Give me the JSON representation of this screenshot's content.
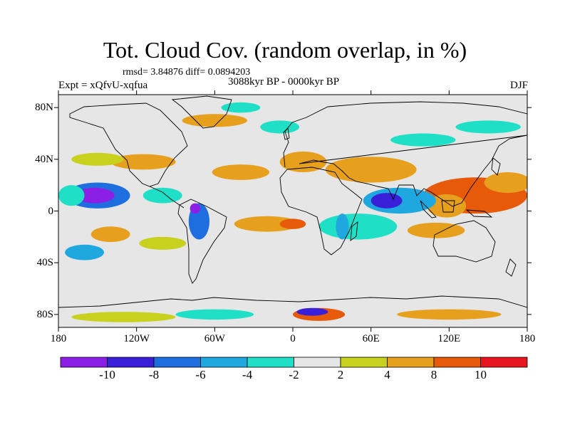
{
  "header": {
    "title": "Tot. Cloud Cov. (random overlap, in %)",
    "stats": "rmsd= 3.84876 diff= 0.0894203",
    "experiment": "Expt = xQfvU-xqfua",
    "period": "3088kyr BP - 0000kyr BP",
    "season": "DJF"
  },
  "axes": {
    "x_ticks": [
      {
        "value": -180,
        "label": "180"
      },
      {
        "value": -120,
        "label": "120W"
      },
      {
        "value": -60,
        "label": "60W"
      },
      {
        "value": 0,
        "label": "0"
      },
      {
        "value": 60,
        "label": "60E"
      },
      {
        "value": 120,
        "label": "120E"
      },
      {
        "value": 180,
        "label": "180"
      }
    ],
    "y_ticks": [
      {
        "value": 80,
        "label": "80N"
      },
      {
        "value": 40,
        "label": "40N"
      },
      {
        "value": 0,
        "label": "0"
      },
      {
        "value": -40,
        "label": "40S"
      },
      {
        "value": -80,
        "label": "80S"
      }
    ],
    "lon_range": [
      -180,
      180
    ],
    "lat_range": [
      -90,
      90
    ]
  },
  "colorbar": {
    "bins": [
      {
        "color": "#8b1fe6"
      },
      {
        "color": "#3a1fd8"
      },
      {
        "color": "#1f6ee0"
      },
      {
        "color": "#1fa8e0"
      },
      {
        "color": "#1fe0c6"
      },
      {
        "color": "#e6e6e6"
      },
      {
        "color": "#c8d21e"
      },
      {
        "color": "#e6a01e"
      },
      {
        "color": "#e65a0a"
      },
      {
        "color": "#e6141e"
      }
    ],
    "labels": [
      "-10",
      "-8",
      "-6",
      "-4",
      "-2",
      "2",
      "4",
      "8",
      "10"
    ]
  },
  "chart_data": {
    "type": "heatmap",
    "title": "Tot. Cloud Cov. (random overlap, in %)",
    "xlabel": "",
    "ylabel": "",
    "xlim": [
      -180,
      180
    ],
    "ylim": [
      -90,
      90
    ],
    "levels": [
      -10,
      -8,
      -6,
      -4,
      -2,
      2,
      4,
      8,
      10
    ],
    "anomaly_regions": [
      {
        "lon": 150,
        "lat": 12,
        "rlon": 28,
        "rlat": 9,
        "value": 11
      },
      {
        "lon": 140,
        "lat": 12,
        "rlon": 40,
        "rlat": 14,
        "value": 9
      },
      {
        "lon": 118,
        "lat": 4,
        "rlon": 15,
        "rlat": 9,
        "value": 6
      },
      {
        "lon": 165,
        "lat": 22,
        "rlon": 18,
        "rlat": 8,
        "value": 5
      },
      {
        "lon": 110,
        "lat": -15,
        "rlon": 22,
        "rlat": 6,
        "value": 5
      },
      {
        "lon": 82,
        "lat": 8,
        "rlon": 28,
        "rlat": 10,
        "value": -5
      },
      {
        "lon": 72,
        "lat": 8,
        "rlon": 12,
        "rlat": 6,
        "value": -9
      },
      {
        "lon": 50,
        "lat": -12,
        "rlon": 30,
        "rlat": 10,
        "value": -3
      },
      {
        "lon": 38,
        "lat": -12,
        "rlon": 5,
        "rlat": 10,
        "value": -5
      },
      {
        "lon": 60,
        "lat": 32,
        "rlon": 35,
        "rlat": 10,
        "value": 5
      },
      {
        "lon": 8,
        "lat": 38,
        "rlon": 18,
        "rlat": 8,
        "value": 5
      },
      {
        "lon": -40,
        "lat": 30,
        "rlon": 22,
        "rlat": 6,
        "value": 5
      },
      {
        "lon": -115,
        "lat": 38,
        "rlon": 25,
        "rlat": 6,
        "value": 5
      },
      {
        "lon": -150,
        "lat": 40,
        "rlon": 20,
        "rlat": 5,
        "value": 4
      },
      {
        "lon": -150,
        "lat": 12,
        "rlon": 25,
        "rlat": 10,
        "value": -6
      },
      {
        "lon": -152,
        "lat": 12,
        "rlon": 15,
        "rlat": 6,
        "value": -10
      },
      {
        "lon": -170,
        "lat": 12,
        "rlon": 10,
        "rlat": 8,
        "value": -3
      },
      {
        "lon": -100,
        "lat": 12,
        "rlon": 15,
        "rlat": 6,
        "value": -3
      },
      {
        "lon": -72,
        "lat": -8,
        "rlon": 8,
        "rlat": 14,
        "value": -6
      },
      {
        "lon": -75,
        "lat": 2,
        "rlon": 4,
        "rlat": 4,
        "value": -10
      },
      {
        "lon": -140,
        "lat": -18,
        "rlon": 15,
        "rlat": 6,
        "value": 7
      },
      {
        "lon": -100,
        "lat": -25,
        "rlon": 18,
        "rlat": 5,
        "value": 4
      },
      {
        "lon": -160,
        "lat": -32,
        "rlon": 15,
        "rlat": 6,
        "value": -5
      },
      {
        "lon": -20,
        "lat": -10,
        "rlon": 25,
        "rlat": 6,
        "value": 6
      },
      {
        "lon": 0,
        "lat": -10,
        "rlon": 10,
        "rlat": 4,
        "value": 9
      },
      {
        "lon": 20,
        "lat": -80,
        "rlon": 20,
        "rlat": 5,
        "value": 9
      },
      {
        "lon": 15,
        "lat": -78,
        "rlon": 12,
        "rlat": 3,
        "value": -8
      },
      {
        "lon": -60,
        "lat": -80,
        "rlon": 30,
        "rlat": 4,
        "value": -3
      },
      {
        "lon": -130,
        "lat": -82,
        "rlon": 40,
        "rlat": 4,
        "value": 4
      },
      {
        "lon": 120,
        "lat": -80,
        "rlon": 40,
        "rlat": 4,
        "value": 5
      },
      {
        "lon": -60,
        "lat": 70,
        "rlon": 25,
        "rlat": 5,
        "value": 6
      },
      {
        "lon": -40,
        "lat": 80,
        "rlon": 15,
        "rlat": 4,
        "value": -3
      },
      {
        "lon": 150,
        "lat": 65,
        "rlon": 25,
        "rlat": 5,
        "value": -3
      },
      {
        "lon": 100,
        "lat": 55,
        "rlon": 25,
        "rlat": 5,
        "value": -3
      },
      {
        "lon": -10,
        "lat": 65,
        "rlon": 15,
        "rlat": 5,
        "value": -3
      }
    ]
  }
}
